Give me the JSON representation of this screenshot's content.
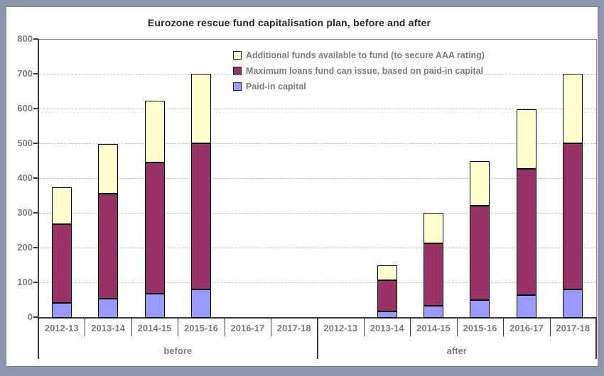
{
  "chart_data": {
    "type": "bar",
    "stacked": true,
    "title": "Eurozone rescue fund capitalisation plan, before and after",
    "ylim": [
      0,
      800
    ],
    "yticks": [
      0,
      100,
      200,
      300,
      400,
      500,
      600,
      700,
      800
    ],
    "grid": "horizontal-dashed",
    "legend_position": "top-center-inside",
    "categories": [
      "2012-13",
      "2013-14",
      "2014-15",
      "2015-16",
      "2016-17",
      "2017-18",
      "2012-13",
      "2013-14",
      "2014-15",
      "2015-16",
      "2016-17",
      "2017-18"
    ],
    "groups": [
      {
        "label": "before",
        "from": 0,
        "to": 5
      },
      {
        "label": "after",
        "from": 6,
        "to": 11
      }
    ],
    "legend": [
      {
        "label": "Additional funds available to fund (to secure AAA rating)",
        "color_key": "pale_yellow"
      },
      {
        "label": "Maximum loans fund can issue, based on paid-in capital",
        "color_key": "maroon"
      },
      {
        "label": "Paid-in capital",
        "color_key": "periwinkle"
      }
    ],
    "series": [
      {
        "name": "Paid-in capital",
        "color_key": "periwinkle",
        "cumulative_top": [
          40,
          53,
          67,
          80,
          0,
          0,
          0,
          16,
          32,
          48,
          64,
          80
        ]
      },
      {
        "name": "Maximum loans fund can issue, based on paid-in capital",
        "color_key": "maroon",
        "cumulative_top": [
          267,
          356,
          444,
          500,
          0,
          0,
          0,
          107,
          213,
          320,
          427,
          500
        ]
      },
      {
        "name": "Additional funds available to fund (to secure AAA rating)",
        "color_key": "pale_yellow",
        "cumulative_top": [
          373,
          498,
          622,
          700,
          0,
          0,
          0,
          149,
          299,
          448,
          597,
          700
        ]
      }
    ],
    "colors": {
      "pale_yellow": "#FFFFCC",
      "maroon": "#993366",
      "periwinkle": "#9999FF",
      "frame": "#8B95AC",
      "axis_text": "#7d7d7d",
      "title_text": "#262626"
    }
  }
}
